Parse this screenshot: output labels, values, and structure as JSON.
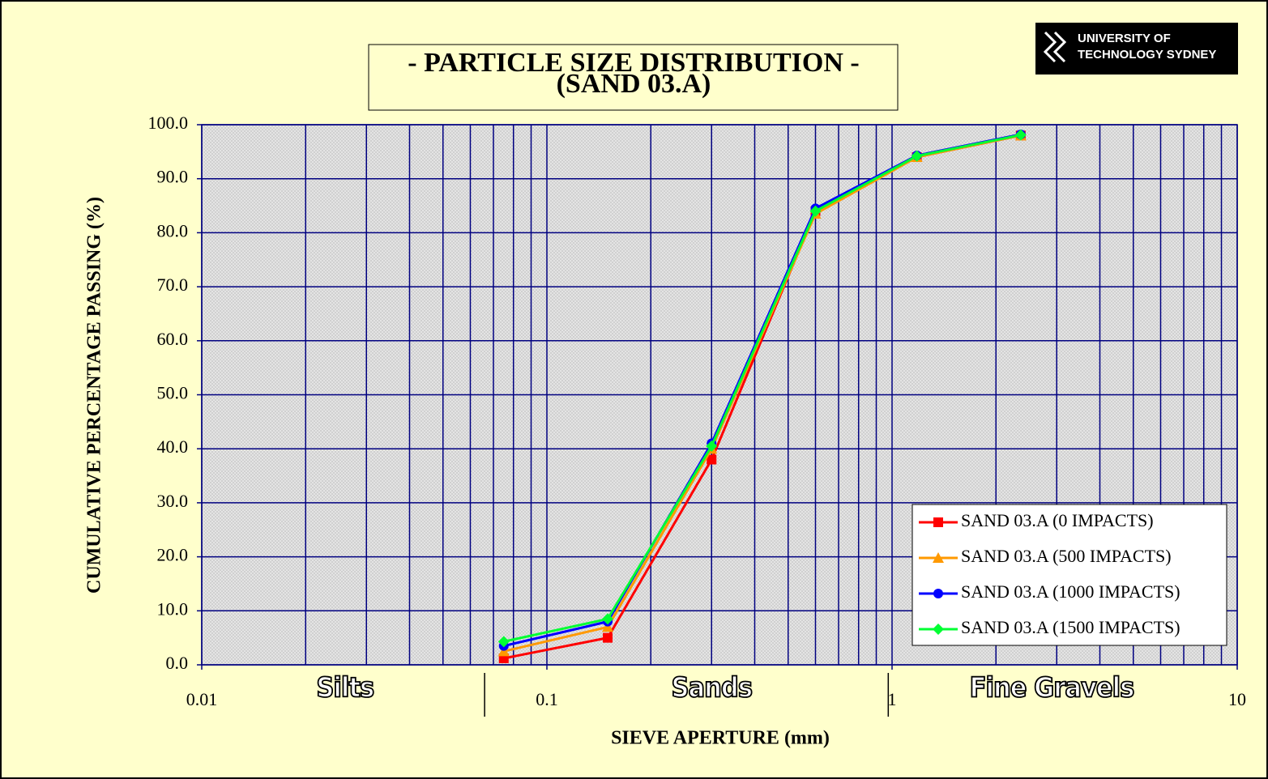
{
  "chart_data": {
    "type": "line",
    "title": "- PARTICLE SIZE DISTRIBUTION -",
    "subtitle": "(SAND 03.A)",
    "logo": [
      "UNIVERSITY OF",
      "TECHNOLOGY SYDNEY"
    ],
    "x_label": "SIEVE APERTURE (mm)",
    "y_label": "CUMULATIVE PERCENTAGE PASSING (%)",
    "x_log": true,
    "x": [
      0.075,
      0.15,
      0.3,
      0.6,
      1.18,
      2.36
    ],
    "xlim": [
      0.01,
      10
    ],
    "xticks": [
      0.01,
      0.1,
      1,
      10
    ],
    "x_minor_ticks": [
      0.02,
      0.03,
      0.04,
      0.05,
      0.06,
      0.07,
      0.08,
      0.09,
      0.2,
      0.3,
      0.4,
      0.5,
      0.6,
      0.7,
      0.8,
      0.9,
      2,
      3,
      4,
      5,
      6,
      7,
      8,
      9
    ],
    "ylim": [
      0,
      100
    ],
    "yticks": [
      {
        "value": 0,
        "label": "0.0"
      },
      {
        "value": 10,
        "label": "10.0"
      },
      {
        "value": 20,
        "label": "20.0"
      },
      {
        "value": 30,
        "label": "30.0"
      },
      {
        "value": 40,
        "label": "40.0"
      },
      {
        "value": 50,
        "label": "50.0"
      },
      {
        "value": 60,
        "label": "60.0"
      },
      {
        "value": 70,
        "label": "70.0"
      },
      {
        "value": 80,
        "label": "80.0"
      },
      {
        "value": 90,
        "label": "90.0"
      },
      {
        "value": 100,
        "label": "100.0"
      }
    ],
    "grid": true,
    "legend": "lower right",
    "regions": [
      {
        "label": "Silts",
        "x": 0.026
      },
      {
        "label": "Sands",
        "x": 0.3
      },
      {
        "label": "Fine Gravels",
        "x": 2.9
      }
    ],
    "region_boundaries": [
      0.066,
      0.975
    ],
    "series": [
      {
        "name": "SAND 03.A (0 IMPACTS)",
        "color": "#ff0000",
        "marker": "square",
        "values": [
          1.2,
          5,
          38,
          84,
          94,
          98
        ]
      },
      {
        "name": "SAND 03.A (500 IMPACTS)",
        "color": "#ff9900",
        "marker": "triangle",
        "values": [
          2.5,
          7,
          40,
          83.5,
          94,
          98
        ]
      },
      {
        "name": "SAND 03.A (1000 IMPACTS)",
        "color": "#0000ff",
        "marker": "circle",
        "values": [
          3.5,
          8,
          41,
          84.5,
          94.3,
          98.2
        ]
      },
      {
        "name": "SAND 03.A (1500 IMPACTS)",
        "color": "#00ff33",
        "marker": "diamond",
        "values": [
          4.3,
          8.5,
          40.5,
          84,
          94.2,
          98.1
        ]
      }
    ]
  }
}
